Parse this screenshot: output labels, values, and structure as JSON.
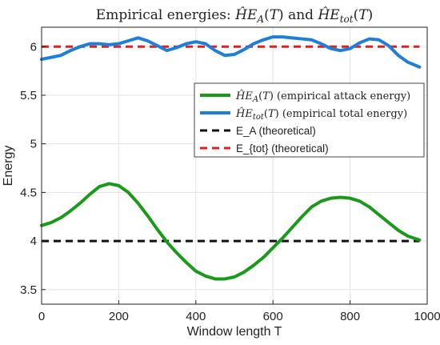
{
  "chart_data": {
    "type": "line",
    "title": "Empirical energies: ĤE_A(T) and ĤE_tot(T)",
    "xlabel": "Window length T",
    "ylabel": "Energy",
    "xlim": [
      0,
      1000
    ],
    "ylim": [
      3.35,
      6.2
    ],
    "xticks": [
      0,
      200,
      400,
      600,
      800,
      1000
    ],
    "yticks": [
      3.5,
      4,
      4.5,
      5,
      5.5,
      6
    ],
    "ytick_labels": [
      "3.5",
      "4",
      "4.5",
      "5",
      "5.5",
      "6"
    ],
    "grid": true,
    "legend_position": "upper-right",
    "series": [
      {
        "name": "ĤE_A(T) (empirical attack energy)",
        "color": "#1a9a1a",
        "style": "solid",
        "x": [
          0,
          25,
          50,
          75,
          100,
          125,
          150,
          175,
          200,
          225,
          250,
          275,
          300,
          325,
          350,
          375,
          400,
          425,
          450,
          475,
          500,
          525,
          550,
          575,
          600,
          625,
          650,
          675,
          700,
          725,
          750,
          775,
          800,
          825,
          850,
          875,
          900,
          925,
          950,
          980
        ],
        "y": [
          4.16,
          4.19,
          4.24,
          4.31,
          4.39,
          4.48,
          4.56,
          4.59,
          4.57,
          4.5,
          4.39,
          4.26,
          4.12,
          3.99,
          3.88,
          3.78,
          3.69,
          3.64,
          3.61,
          3.61,
          3.63,
          3.68,
          3.75,
          3.83,
          3.93,
          4.03,
          4.14,
          4.25,
          4.35,
          4.41,
          4.44,
          4.45,
          4.44,
          4.41,
          4.35,
          4.27,
          4.19,
          4.11,
          4.05,
          4.01
        ]
      },
      {
        "name": "ĤE_tot(T) (empirical total energy)",
        "color": "#1e7fd8",
        "style": "solid",
        "x": [
          0,
          25,
          50,
          75,
          100,
          125,
          150,
          175,
          200,
          225,
          250,
          275,
          300,
          325,
          350,
          375,
          400,
          425,
          450,
          475,
          500,
          525,
          550,
          575,
          600,
          625,
          650,
          675,
          700,
          725,
          750,
          775,
          800,
          825,
          850,
          875,
          900,
          925,
          950,
          980
        ],
        "y": [
          5.87,
          5.89,
          5.91,
          5.96,
          6.0,
          6.03,
          6.03,
          6.02,
          6.03,
          6.06,
          6.09,
          6.06,
          6.01,
          5.96,
          5.99,
          6.03,
          6.05,
          6.03,
          5.96,
          5.91,
          5.92,
          5.97,
          6.03,
          6.07,
          6.1,
          6.1,
          6.09,
          6.08,
          6.07,
          6.03,
          5.98,
          5.96,
          5.98,
          6.04,
          6.08,
          6.07,
          6.01,
          5.91,
          5.84,
          5.79
        ]
      },
      {
        "name": "E_A (theoretical)",
        "color": "#111111",
        "style": "dashed",
        "x": [
          0,
          980
        ],
        "y": [
          4,
          4
        ]
      },
      {
        "name": "E_{tot} (theoretical)",
        "color": "#e02020",
        "style": "dashed",
        "x": [
          0,
          980
        ],
        "y": [
          6,
          6
        ]
      }
    ]
  }
}
